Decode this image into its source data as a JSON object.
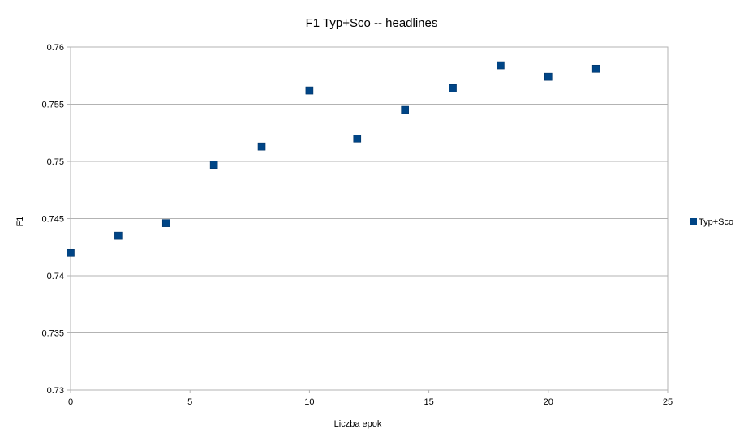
{
  "chart_data": {
    "type": "scatter",
    "title": "F1 Typ+Sco -- headlines",
    "xlabel": "Liczba epok",
    "ylabel": "F1",
    "xlim": [
      0,
      25
    ],
    "ylim": [
      0.73,
      0.76
    ],
    "x_ticks": [
      0,
      5,
      10,
      15,
      20,
      25
    ],
    "x_tick_labels": [
      "0",
      "5",
      "10",
      "15",
      "20",
      "25"
    ],
    "y_ticks": [
      0.73,
      0.735,
      0.74,
      0.745,
      0.75,
      0.755,
      0.76
    ],
    "y_tick_labels": [
      "0.73",
      "0.735",
      "0.74",
      "0.745",
      "0.75",
      "0.755",
      "0.76"
    ],
    "grid": "horizontal",
    "legend_position": "right",
    "series": [
      {
        "name": "Typ+Sco",
        "color": "#004586",
        "marker": "square",
        "x": [
          0,
          2,
          4,
          6,
          8,
          10,
          12,
          14,
          16,
          18,
          20,
          22
        ],
        "y": [
          0.742,
          0.7435,
          0.7446,
          0.7497,
          0.7513,
          0.7562,
          0.752,
          0.7545,
          0.7564,
          0.7584,
          0.7574,
          0.7581
        ]
      }
    ]
  }
}
